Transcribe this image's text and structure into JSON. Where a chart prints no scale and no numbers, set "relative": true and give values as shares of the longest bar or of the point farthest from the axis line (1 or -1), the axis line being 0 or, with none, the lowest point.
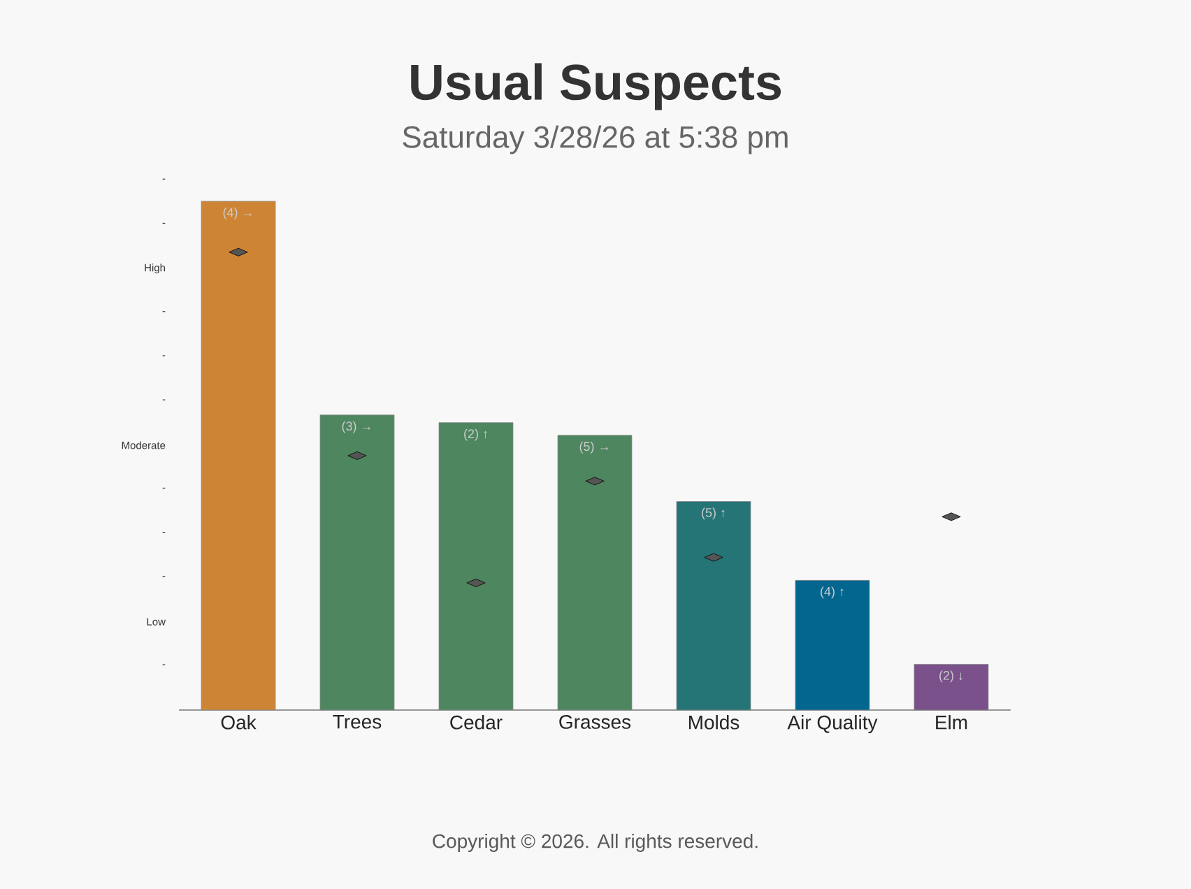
{
  "chart_data": {
    "type": "bar",
    "title": "Usual Suspects",
    "subtitle": "Saturday 3/28/26 at 5:38 pm",
    "relative": true,
    "categories": [
      "Oak",
      "Trees",
      "Cedar",
      "Grasses",
      "Molds",
      "Air Quality",
      "Elm"
    ],
    "series": [
      {
        "colors": [
          "#cd8535",
          "#4e8660",
          "#4e8660",
          "#4e8660",
          "#267576",
          "#02668f",
          "#7a518a"
        ],
        "values": [
          1,
          0.58,
          0.565,
          0.54,
          0.41,
          0.255,
          0.09
        ]
      },
      {
        "type": "scatter",
        "color": "#555555",
        "marker": "diamond",
        "values": [
          0.9,
          0.5,
          0.25,
          0.45,
          0.3,
          null,
          0.38
        ]
      }
    ],
    "annotations": [
      "Copyright © 2026. All rights reserved.",
      {
        "text": "(4) →",
        "x": "Oak",
        "y": 1
      },
      {
        "text": "(3) →",
        "x": "Trees",
        "y": 0.58
      },
      {
        "text": "(2) ↑",
        "x": "Cedar",
        "y": 0.565
      },
      {
        "text": "(5) →",
        "x": "Grasses",
        "y": 0.54
      },
      {
        "text": "(5) ↑",
        "x": "Molds",
        "y": 0.41
      },
      {
        "text": "(4) ↑",
        "x": "Air Quality",
        "y": 0.255
      },
      {
        "text": "(2) ↓",
        "x": "Elm",
        "y": 0.09
      },
      "-",
      "Low",
      "-",
      "-",
      "-",
      "Moderate",
      "-",
      "-",
      "-",
      "High",
      "-",
      "-"
    ]
  }
}
